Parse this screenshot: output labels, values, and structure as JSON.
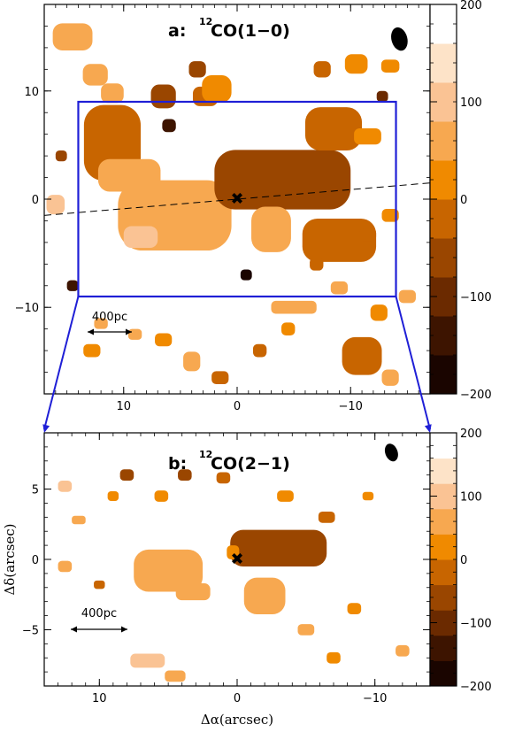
{
  "chart_data": [
    {
      "type": "heatmap",
      "panel_label": "a:",
      "line_prefix": "12",
      "line_name": "CO(1−0)",
      "xlim": [
        17,
        -17
      ],
      "ylim": [
        -18,
        18
      ],
      "xticks": [
        10,
        0,
        -10
      ],
      "yticks": [
        10,
        0,
        -10
      ],
      "ytick_labels": [
        "10",
        "0",
        "−10"
      ],
      "xtick_labels": [
        "",
        "",
        ""
      ],
      "xlabel": "",
      "ylabel": "",
      "grid": false,
      "colorbar": {
        "range": [
          -200,
          200
        ],
        "ticks": [
          200,
          100,
          0,
          -100,
          -200
        ],
        "tick_labels": [
          "200",
          "100",
          "0",
          "−100",
          "−200"
        ],
        "colors": [
          "#1a0500",
          "#3d1400",
          "#6b2a00",
          "#9a4600",
          "#c86500",
          "#f08a00",
          "#f7a850",
          "#fac394",
          "#fde3c8",
          "#ffffff"
        ]
      },
      "scale_bar_label": "400pc",
      "zoom_box": {
        "x": [
          14,
          -14
        ],
        "y": [
          9,
          -9
        ]
      },
      "center_marker": [
        0,
        0
      ],
      "major_axis_line": {
        "x": [
          17,
          -17
        ],
        "y": [
          -1.5,
          1.5
        ]
      },
      "emission_patches": [
        {
          "x": 14.5,
          "y": 15,
          "w": 3.5,
          "h": 2.5,
          "v": 70
        },
        {
          "x": 12.5,
          "y": 11.5,
          "w": 2.2,
          "h": 2,
          "v": 40
        },
        {
          "x": 11,
          "y": 9.8,
          "w": 2,
          "h": 1.8,
          "v": 55
        },
        {
          "x": 11,
          "y": 5.2,
          "w": 5,
          "h": 7,
          "v": -40
        },
        {
          "x": 9.5,
          "y": 2.2,
          "w": 5.5,
          "h": 3,
          "v": 45
        },
        {
          "x": 6.5,
          "y": 9.5,
          "w": 2.2,
          "h": 2.2,
          "v": -45
        },
        {
          "x": 6,
          "y": 6.8,
          "w": 1.2,
          "h": 1.2,
          "v": -150
        },
        {
          "x": 5.5,
          "y": -1.5,
          "w": 10,
          "h": 6.5,
          "v": 60
        },
        {
          "x": 8.5,
          "y": -3.5,
          "w": 3,
          "h": 2,
          "v": 80
        },
        {
          "x": 3.5,
          "y": 12,
          "w": 1.5,
          "h": 1.5,
          "v": -60
        },
        {
          "x": 2.8,
          "y": 9.5,
          "w": 2.2,
          "h": 1.8,
          "v": -30
        },
        {
          "x": 1.8,
          "y": 10.2,
          "w": 2.6,
          "h": 2.5,
          "v": 30
        },
        {
          "x": -4,
          "y": 1.8,
          "w": 12,
          "h": 5.5,
          "v": -75
        },
        {
          "x": -3,
          "y": -2.8,
          "w": 3.5,
          "h": 4.2,
          "v": 45
        },
        {
          "x": -9,
          "y": -3.8,
          "w": 6.5,
          "h": 4,
          "v": -10
        },
        {
          "x": -8.5,
          "y": 6.5,
          "w": 5,
          "h": 4,
          "v": -10
        },
        {
          "x": -11.5,
          "y": 5.8,
          "w": 2.4,
          "h": 1.5,
          "v": 0
        },
        {
          "x": -11.5,
          "y": -3.3,
          "w": 1.5,
          "h": 1.2,
          "v": -20
        },
        {
          "x": -7.5,
          "y": 12,
          "w": 1.5,
          "h": 1.5,
          "v": -30
        },
        {
          "x": -10.5,
          "y": 12.5,
          "w": 2,
          "h": 1.8,
          "v": 30
        },
        {
          "x": -12.8,
          "y": 9.5,
          "w": 1,
          "h": 1,
          "v": -90
        },
        {
          "x": -13.5,
          "y": 12.3,
          "w": 1.6,
          "h": 1.2,
          "v": 0
        },
        {
          "x": -13.5,
          "y": -1.5,
          "w": 1.5,
          "h": 1.2,
          "v": 20
        },
        {
          "x": -12.5,
          "y": -10.5,
          "w": 1.5,
          "h": 1.5,
          "v": 20
        },
        {
          "x": -11,
          "y": -14.5,
          "w": 3.5,
          "h": 3.5,
          "v": -40
        },
        {
          "x": -13.5,
          "y": -16.5,
          "w": 1.5,
          "h": 1.5,
          "v": 60
        },
        {
          "x": -5,
          "y": -10,
          "w": 4,
          "h": 1.2,
          "v": 40
        },
        {
          "x": -4.5,
          "y": -12,
          "w": 1.2,
          "h": 1.2,
          "v": 30
        },
        {
          "x": -2,
          "y": -14,
          "w": 1.2,
          "h": 1.2,
          "v": -20
        },
        {
          "x": 4,
          "y": -15,
          "w": 1.5,
          "h": 1.8,
          "v": 40
        },
        {
          "x": 1.5,
          "y": -16.5,
          "w": 1.5,
          "h": 1.2,
          "v": -30
        },
        {
          "x": 6.5,
          "y": -13,
          "w": 1.5,
          "h": 1.2,
          "v": 30
        },
        {
          "x": 12.8,
          "y": -14,
          "w": 1.5,
          "h": 1.2,
          "v": 20
        },
        {
          "x": 16,
          "y": -0.5,
          "w": 1.6,
          "h": 1.8,
          "v": 80
        },
        {
          "x": 14.5,
          "y": -8,
          "w": 1,
          "h": 1,
          "v": -150
        },
        {
          "x": 12,
          "y": -11.5,
          "w": 1.2,
          "h": 1,
          "v": 60
        },
        {
          "x": -0.8,
          "y": -7,
          "w": 1,
          "h": 1,
          "v": -180
        },
        {
          "x": -7,
          "y": -6,
          "w": 1.2,
          "h": 1.2,
          "v": -30
        },
        {
          "x": -9,
          "y": -8.2,
          "w": 1.5,
          "h": 1.2,
          "v": 40
        },
        {
          "x": 15.5,
          "y": 4,
          "w": 1,
          "h": 1,
          "v": -80
        },
        {
          "x": 9,
          "y": -12.5,
          "w": 1.2,
          "h": 1,
          "v": 50
        },
        {
          "x": -15,
          "y": -9,
          "w": 1.5,
          "h": 1.2,
          "v": 70
        }
      ],
      "beam": {
        "x": -14.3,
        "y": 14.8,
        "w": 1.4,
        "h": 2.2,
        "angle": -15
      }
    },
    {
      "type": "heatmap",
      "panel_label": "b:",
      "line_prefix": "12",
      "line_name": "CO(2−1)",
      "xlim": [
        14,
        -14
      ],
      "ylim": [
        -9,
        9
      ],
      "xticks": [
        10,
        0,
        -10
      ],
      "yticks": [
        5,
        0,
        -5
      ],
      "xtick_labels": [
        "10",
        "0",
        "−10"
      ],
      "ytick_labels": [
        "5",
        "0",
        "−5"
      ],
      "xlabel": "Δα(arcsec)",
      "ylabel": "Δδ(arcsec)",
      "grid": false,
      "colorbar": {
        "range": [
          -200,
          200
        ],
        "ticks": [
          200,
          100,
          0,
          -100,
          -200
        ],
        "tick_labels": [
          "200",
          "100",
          "0",
          "−100",
          "−200"
        ],
        "colors": [
          "#1a0500",
          "#3d1400",
          "#6b2a00",
          "#9a4600",
          "#c86500",
          "#f08a00",
          "#f7a850",
          "#fac394",
          "#fde3c8",
          "#ffffff"
        ]
      },
      "scale_bar_label": "400pc",
      "center_marker": [
        0,
        0
      ],
      "emission_patches": [
        {
          "x": 5,
          "y": -0.8,
          "w": 5,
          "h": 3,
          "v": 60
        },
        {
          "x": 3.2,
          "y": -2.3,
          "w": 2.5,
          "h": 1.2,
          "v": 70
        },
        {
          "x": -3,
          "y": 0.8,
          "w": 7,
          "h": 2.6,
          "v": -60
        },
        {
          "x": -2,
          "y": -2.6,
          "w": 3,
          "h": 2.6,
          "v": 50
        },
        {
          "x": 0.3,
          "y": 0.5,
          "w": 0.9,
          "h": 1,
          "v": 0
        },
        {
          "x": 8,
          "y": 6,
          "w": 1,
          "h": 0.8,
          "v": -60
        },
        {
          "x": 9,
          "y": 4.5,
          "w": 0.8,
          "h": 0.7,
          "v": 30
        },
        {
          "x": 3.8,
          "y": 6,
          "w": 1,
          "h": 0.8,
          "v": -60
        },
        {
          "x": 5.5,
          "y": 4.5,
          "w": 1,
          "h": 0.8,
          "v": 30
        },
        {
          "x": -3.5,
          "y": 4.5,
          "w": 1.2,
          "h": 0.8,
          "v": 20
        },
        {
          "x": -6.5,
          "y": 3,
          "w": 1.2,
          "h": 0.8,
          "v": -30
        },
        {
          "x": -8.5,
          "y": -3.5,
          "w": 1,
          "h": 0.8,
          "v": 20
        },
        {
          "x": -5,
          "y": -5,
          "w": 1.2,
          "h": 0.8,
          "v": 40
        },
        {
          "x": 6.5,
          "y": -7.2,
          "w": 2.5,
          "h": 1,
          "v": 80
        },
        {
          "x": 4.5,
          "y": -8.3,
          "w": 1.5,
          "h": 0.8,
          "v": 60
        },
        {
          "x": 12.5,
          "y": -0.5,
          "w": 1,
          "h": 0.8,
          "v": 40
        },
        {
          "x": 11.5,
          "y": 2.8,
          "w": 1,
          "h": 0.6,
          "v": 60
        },
        {
          "x": 1,
          "y": 5.8,
          "w": 1,
          "h": 0.8,
          "v": -20
        },
        {
          "x": -9.5,
          "y": 4.5,
          "w": 0.8,
          "h": 0.6,
          "v": 10
        },
        {
          "x": -12,
          "y": -6.5,
          "w": 1,
          "h": 0.8,
          "v": 60
        },
        {
          "x": 10,
          "y": -1.8,
          "w": 0.8,
          "h": 0.6,
          "v": -40
        },
        {
          "x": -7,
          "y": -7,
          "w": 1,
          "h": 0.8,
          "v": 30
        },
        {
          "x": 12.5,
          "y": 5.2,
          "w": 1,
          "h": 0.8,
          "v": 80
        }
      ],
      "beam": {
        "x": -11.2,
        "y": 7.6,
        "w": 0.9,
        "h": 1.3,
        "angle": -20
      }
    }
  ]
}
